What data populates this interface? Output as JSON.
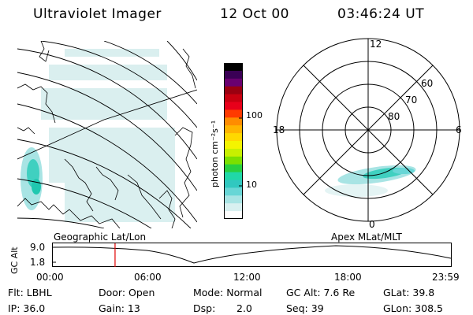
{
  "header": {
    "instrument": "Ultraviolet Imager",
    "date": "12 Oct 00",
    "time": "03:46:24 UT"
  },
  "colorbar": {
    "unit_label": "photon cm⁻²s⁻¹",
    "ticks": [
      "100",
      "10"
    ],
    "colors": [
      "#000000",
      "#3a0055",
      "#6a0070",
      "#9a0010",
      "#c80010",
      "#e8001a",
      "#ff3a00",
      "#ff8c00",
      "#ffb400",
      "#ffd800",
      "#f4f400",
      "#c8f000",
      "#7ce000",
      "#28d040",
      "#20d8a8",
      "#30c8c0",
      "#68d6d6",
      "#a8e4e4",
      "#d8f0f0",
      "#ffffff"
    ]
  },
  "map_labels": {
    "left": "Geographic Lat/Lon",
    "right": "Apex MLat/MLT"
  },
  "polar": {
    "mlt_top": "12",
    "mlt_left": "18",
    "mlt_right": "6",
    "mlt_bottom": "0",
    "lat_60": "60",
    "lat_70": "70",
    "lat_80": "80"
  },
  "altitude_plot": {
    "axis_label": "GC Alt",
    "y_top": "9.0",
    "y_bottom": "1.8",
    "x_ticks": [
      "00:00",
      "06:00",
      "12:00",
      "18:00",
      "23:59"
    ],
    "current_time_fraction": 0.158
  },
  "status": {
    "filter": "Flt: LBHL",
    "ip": "IP: 36.0",
    "door": "Door: Open",
    "gain": "Gain: 13",
    "mode": "Mode: Normal",
    "dsp_label": "Dsp:",
    "dsp_value": "2.0",
    "gc_alt": "GC Alt: 7.6 Re",
    "seq": "Seq: 39",
    "glat": "GLat: 39.8",
    "glon": "GLon: 308.5"
  }
}
